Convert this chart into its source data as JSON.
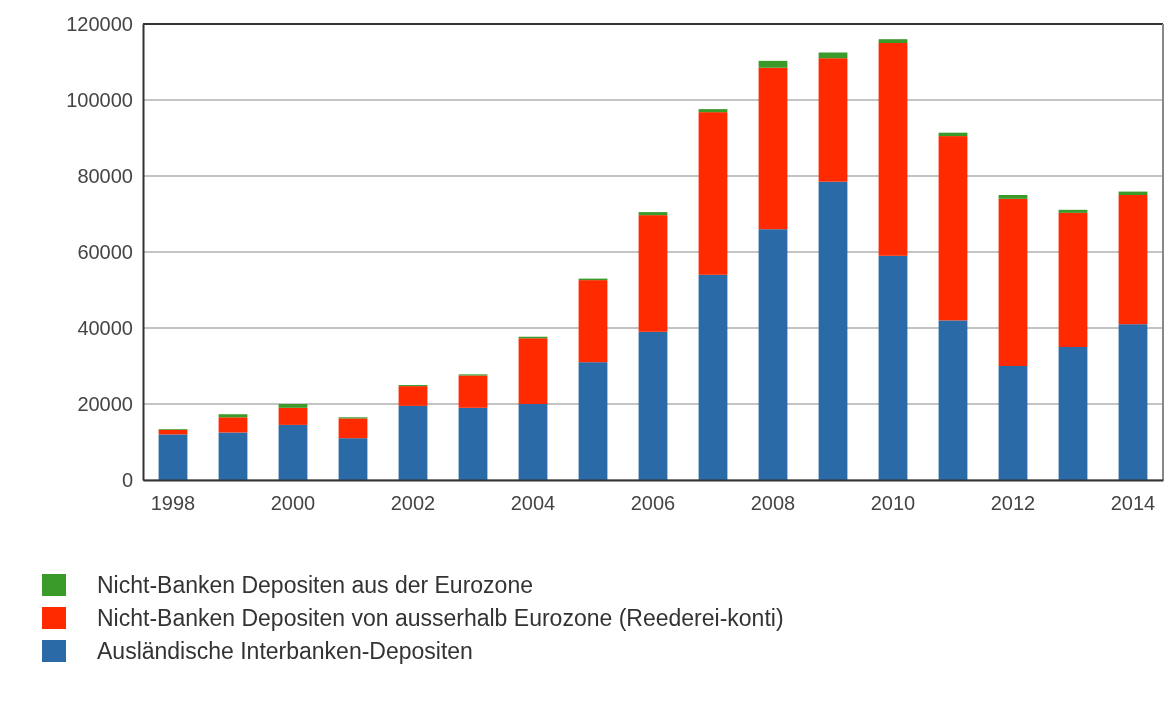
{
  "chart_data": {
    "type": "bar",
    "stacked": true,
    "categories": [
      "1998",
      null,
      "2000",
      null,
      "2002",
      null,
      "2004",
      null,
      "2006",
      null,
      "2008",
      null,
      "2010",
      null,
      "2012",
      null,
      "2014"
    ],
    "series": [
      {
        "name": "Ausländische Interbanken-Depositen",
        "color": "#2a6aa6",
        "values": [
          12000,
          12500,
          14500,
          11000,
          19500,
          19000,
          20000,
          31000,
          39000,
          54000,
          66000,
          78500,
          59000,
          42000,
          30000,
          35000,
          41000
        ]
      },
      {
        "name": "Nicht-Banken Depositen von ausserhalb Eurozone (Reederei-konti)",
        "color": "#ff2a00",
        "values": [
          1200,
          4000,
          4500,
          5200,
          5200,
          8500,
          17300,
          21600,
          30700,
          42800,
          42500,
          32500,
          56000,
          48500,
          44000,
          35300,
          34000
        ]
      },
      {
        "name": "Nicht-Banken Depositen aus der Eurozone",
        "color": "#3a9a2a",
        "values": [
          200,
          800,
          1000,
          300,
          300,
          300,
          400,
          400,
          800,
          800,
          1800,
          1500,
          1000,
          900,
          1000,
          800,
          900
        ]
      }
    ],
    "ylim": [
      0,
      120000
    ],
    "yticks": [
      0,
      20000,
      40000,
      60000,
      80000,
      100000,
      120000
    ],
    "grid": "y",
    "legend": "bottom left"
  }
}
